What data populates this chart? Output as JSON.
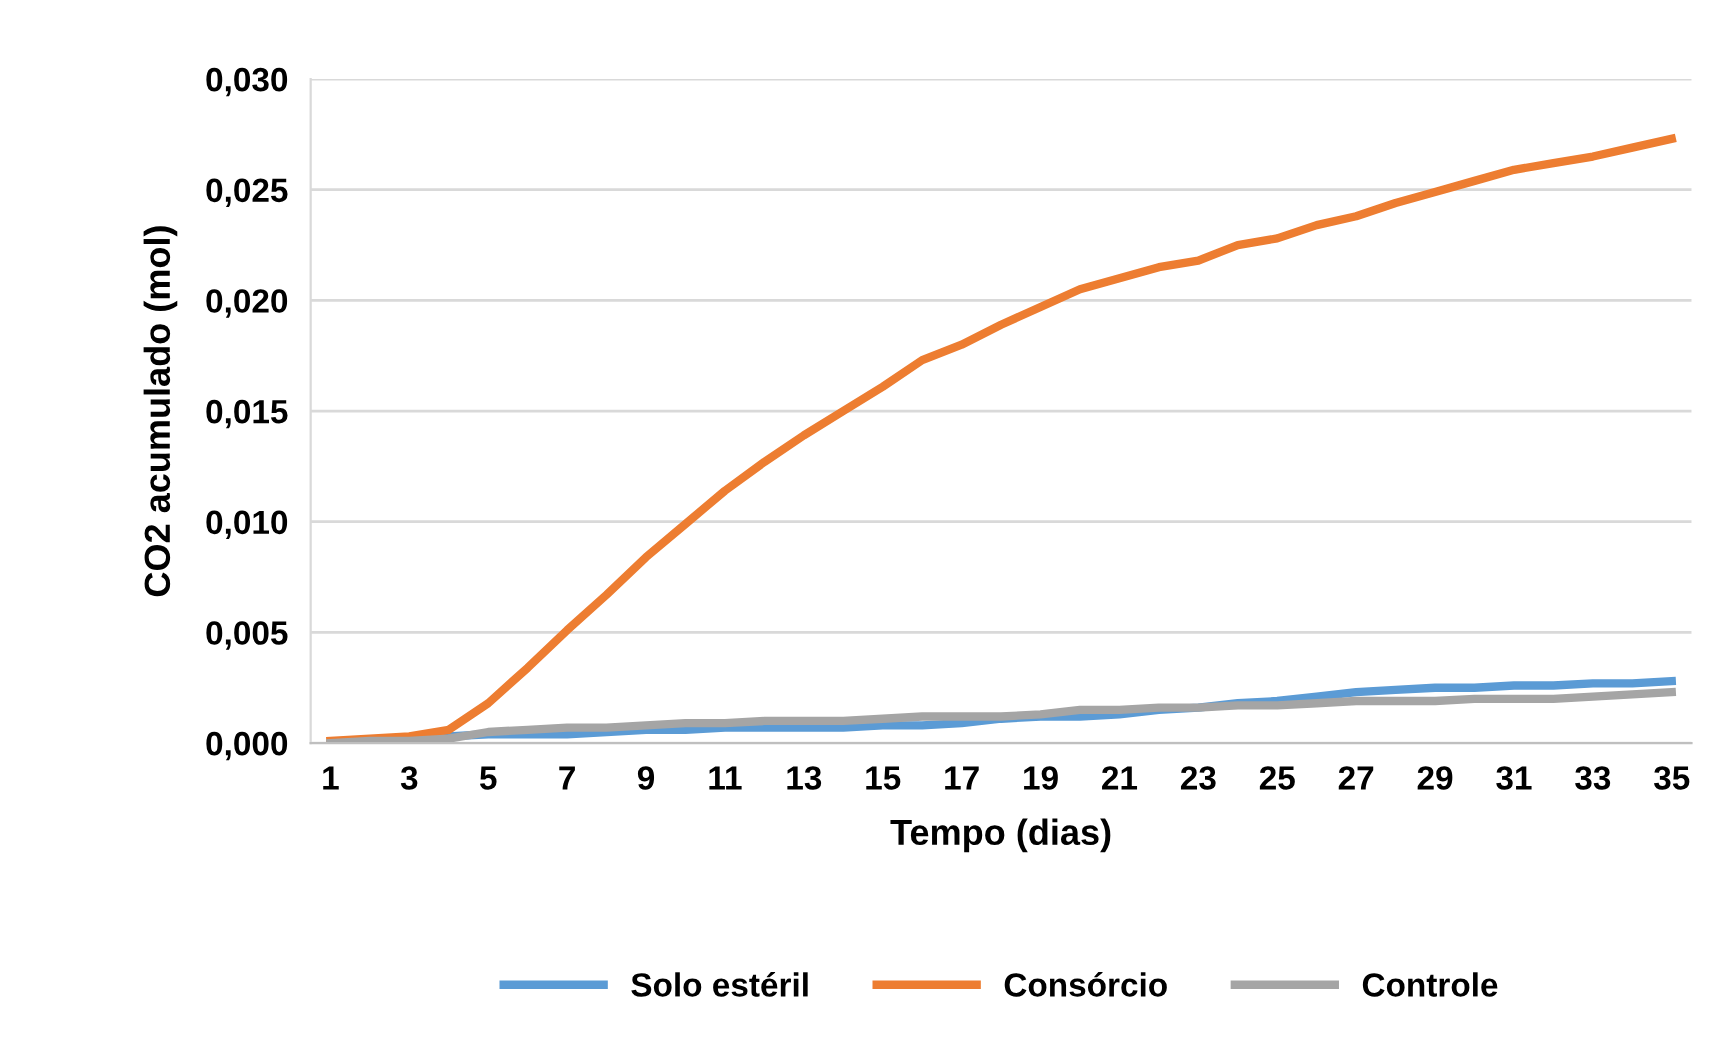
{
  "chart_data": {
    "type": "line",
    "xlabel": "Tempo (dias)",
    "ylabel": "CO2 acumulado (mol)",
    "categories": [
      "1",
      null,
      "3",
      null,
      "5",
      null,
      "7",
      null,
      "9",
      null,
      "11",
      null,
      "13",
      null,
      "15",
      null,
      "17",
      null,
      "19",
      null,
      "21",
      null,
      "23",
      null,
      "25",
      null,
      "27",
      null,
      "29",
      null,
      "31",
      null,
      "33",
      null,
      "35"
    ],
    "series": [
      {
        "name": "Solo estéril",
        "color": "#5b9bd5",
        "values": [
          null,
          null,
          0.0002,
          0.0003,
          0.0004,
          0.0004,
          0.0004,
          0.0005,
          0.0006,
          0.0006,
          0.0007,
          0.0007,
          0.0007,
          0.0007,
          0.0008,
          0.0008,
          0.0009,
          0.0011,
          0.0012,
          0.0012,
          0.0013,
          0.0015,
          0.0016,
          0.0018,
          0.0019,
          0.0021,
          0.0023,
          0.0024,
          0.0025,
          0.0025,
          0.0026,
          0.0026,
          0.0027,
          0.0027,
          0.0028
        ]
      },
      {
        "name": "Consórcio",
        "color": "#ed7d31",
        "values": [
          0.0001,
          0.0002,
          0.0003,
          0.0006,
          0.0018,
          0.0034,
          0.0051,
          0.0067,
          0.0084,
          0.0099,
          0.0114,
          0.0127,
          0.0139,
          0.015,
          0.0161,
          0.0173,
          0.018,
          0.0189,
          0.0197,
          0.0205,
          0.021,
          0.0215,
          0.0218,
          0.0225,
          0.0228,
          0.0234,
          0.0238,
          0.0244,
          0.0249,
          0.0254,
          0.0259,
          0.0262,
          0.0265,
          0.0269,
          0.0273
        ]
      },
      {
        "name": "Controle",
        "color": "#a5a5a5",
        "values": [
          0.0,
          0.0001,
          0.0001,
          0.0002,
          0.0005,
          0.0006,
          0.0007,
          0.0007,
          0.0008,
          0.0009,
          0.0009,
          0.001,
          0.001,
          0.001,
          0.0011,
          0.0012,
          0.0012,
          0.0012,
          0.0013,
          0.0015,
          0.0015,
          0.0016,
          0.0016,
          0.0017,
          0.0017,
          0.0018,
          0.0019,
          0.0019,
          0.0019,
          0.002,
          0.002,
          0.002,
          0.0021,
          0.0022,
          0.0023
        ]
      }
    ],
    "ylim": [
      0,
      0.03
    ],
    "yticks": [
      {
        "value": 0,
        "label": "0,000"
      },
      {
        "value": 0.005,
        "label": "0,005"
      },
      {
        "value": 0.01,
        "label": "0,010"
      },
      {
        "value": 0.015,
        "label": "0,015"
      },
      {
        "value": 0.02,
        "label": "0,020"
      },
      {
        "value": 0.025,
        "label": "0,025"
      },
      {
        "value": 0.03,
        "label": "0,030"
      }
    ],
    "grid": "y",
    "legend": "bottom",
    "marker": "none",
    "line_style": "solid"
  }
}
